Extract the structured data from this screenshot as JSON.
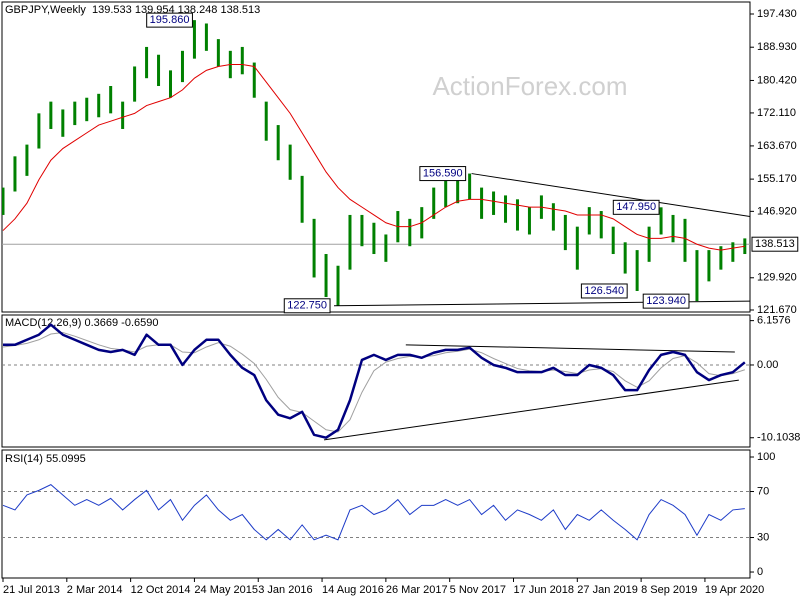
{
  "chart_data": [
    {
      "type": "range",
      "title": "GBPJPY,Weekly  139.533 139.954 138.248 138.513",
      "watermark": "ActionForex.com",
      "x": [
        0,
        6,
        12,
        18,
        24,
        30,
        36,
        42,
        48,
        54,
        60,
        66,
        72,
        78,
        84,
        90,
        96,
        102,
        108,
        114,
        120,
        126,
        132,
        138,
        144,
        150,
        156,
        162,
        168,
        174,
        180,
        186,
        192,
        198,
        204,
        210,
        216,
        222,
        228,
        234,
        240,
        246,
        252,
        258,
        264,
        270,
        276,
        282,
        288,
        294,
        300,
        306,
        312,
        318,
        324,
        330,
        336,
        342,
        348,
        354,
        360,
        366,
        372
      ],
      "xlim": [
        -0.5,
        374.6
      ],
      "xticks": [
        {
          "value": 0,
          "label": "21 Jul 2013"
        },
        {
          "value": 32,
          "label": "2 Mar 2014"
        },
        {
          "value": 64,
          "label": "12 Oct 2014"
        },
        {
          "value": 96,
          "label": "24 May 2015"
        },
        {
          "value": 128,
          "label": "3 Jan 2016"
        },
        {
          "value": 160,
          "label": "14 Aug 2016"
        },
        {
          "value": 192,
          "label": "26 Mar 2017"
        },
        {
          "value": 224,
          "label": "5 Nov 2017"
        },
        {
          "value": 256,
          "label": "17 Jun 2018"
        },
        {
          "value": 288,
          "label": "27 Jan 2019"
        },
        {
          "value": 320,
          "label": "8 Sep 2019"
        },
        {
          "value": 352,
          "label": "19 Apr 2020"
        }
      ],
      "high": [
        153,
        161,
        164,
        172,
        175,
        173,
        175,
        176,
        177,
        179,
        175,
        184,
        189,
        187,
        183,
        188,
        195.86,
        195,
        191,
        188,
        189,
        185,
        175,
        169,
        164,
        156,
        145,
        136,
        133,
        146,
        146,
        144,
        141,
        147,
        145,
        148,
        153,
        155,
        155,
        156.59,
        153,
        152,
        151,
        150,
        148,
        151,
        149,
        146,
        143,
        148,
        147,
        143,
        139,
        137,
        143,
        147.95,
        146,
        145,
        137,
        137,
        138,
        139,
        140
      ],
      "low": [
        146,
        152,
        156,
        163,
        168,
        166,
        169,
        170,
        171,
        172,
        168,
        175,
        181,
        179,
        176,
        180,
        186,
        188,
        184,
        181,
        182,
        176,
        165,
        160,
        155,
        144,
        130,
        125,
        122.75,
        132,
        138,
        136,
        134,
        139,
        138,
        140,
        145,
        148,
        149,
        150,
        145,
        146,
        144,
        142,
        141,
        145,
        142,
        137,
        132,
        141,
        140,
        136,
        131,
        126.54,
        134,
        141,
        139,
        134,
        123.94,
        129,
        132,
        134,
        136
      ],
      "color": "#008000",
      "ma": {
        "color": "#e00000",
        "values": [
          142,
          145,
          149,
          155,
          160,
          163,
          165,
          167,
          169,
          170,
          171,
          172,
          174,
          175,
          176,
          178,
          181,
          183,
          184,
          184.5,
          184.5,
          184,
          180,
          176,
          172,
          167,
          162,
          157,
          153,
          150,
          148,
          146,
          144,
          143,
          143,
          144,
          146,
          148,
          149.5,
          150,
          150,
          149.5,
          149,
          148.5,
          148,
          148,
          147.5,
          147,
          146,
          146,
          146,
          145,
          143,
          141,
          140,
          140,
          140.5,
          140,
          138.5,
          137.5,
          137,
          137.5,
          138
        ]
      },
      "ylim": [
        121.16,
        200.5
      ],
      "yticks": [
        {
          "value": 197.43,
          "label": "197.430"
        },
        {
          "value": 188.93,
          "label": "188.930"
        },
        {
          "value": 180.42,
          "label": "180.420"
        },
        {
          "value": 172.11,
          "label": "172.110"
        },
        {
          "value": 163.67,
          "label": "163.670"
        },
        {
          "value": 155.17,
          "label": "155.170"
        },
        {
          "value": 146.92,
          "label": "146.920"
        },
        {
          "value": 129.92,
          "label": "129.920"
        },
        {
          "value": 121.67,
          "label": "121.670"
        }
      ],
      "last_price": {
        "value": 138.513,
        "label": "138.513"
      },
      "annotations": [
        {
          "x": 95,
          "value": 195.86,
          "label": "195.860"
        },
        {
          "x": 232,
          "value": 156.59,
          "label": "156.590"
        },
        {
          "x": 329,
          "value": 147.95,
          "label": "147.950"
        },
        {
          "x": 313,
          "value": 126.54,
          "label": "126.540"
        },
        {
          "x": 344,
          "value": 123.94,
          "label": "123.940"
        },
        {
          "x": 164,
          "value": 122.75,
          "label": "122.750"
        }
      ],
      "trendlines": [
        {
          "x": [
            235,
            374.6
          ],
          "y": [
            156.59,
            145.6
          ]
        },
        {
          "x": [
            166,
            374.6
          ],
          "y": [
            122.75,
            123.94
          ]
        }
      ]
    },
    {
      "type": "macd",
      "title": "MACD(12,26,9) 0.3669 -0.6590",
      "macd": {
        "color": "#000080",
        "values": [
          2.8,
          2.8,
          3.5,
          4.2,
          5.6,
          4.2,
          3.5,
          2.8,
          2.1,
          1.8,
          2.1,
          1.4,
          4.2,
          2.8,
          2.8,
          0,
          2.1,
          3.5,
          3.5,
          1.4,
          -0.4,
          -1.4,
          -4.9,
          -6.9,
          -7.4,
          -6.5,
          -9.7,
          -10.1,
          -9.0,
          -4.9,
          0.7,
          1.4,
          0.7,
          1.4,
          1.4,
          1.0,
          1.7,
          2.1,
          2.1,
          2.4,
          1.0,
          0,
          -0.4,
          -1.0,
          -1.0,
          -1.0,
          -0.4,
          -1.4,
          -1.4,
          0,
          -0.4,
          -1.4,
          -3.5,
          -3.5,
          -0.7,
          1.4,
          1.8,
          1.4,
          -1.0,
          -2.1,
          -1.4,
          -1.0,
          0.3669
        ]
      },
      "signal": {
        "color": "#a0a0a0",
        "values": [
          2.5,
          2.7,
          3.0,
          3.5,
          4.3,
          4.5,
          4.0,
          3.4,
          2.8,
          2.3,
          2.1,
          1.8,
          2.6,
          2.8,
          2.8,
          1.8,
          1.7,
          2.5,
          3.1,
          2.6,
          1.5,
          0.2,
          -2.0,
          -4.5,
          -6.2,
          -6.6,
          -7.8,
          -9.0,
          -9.3,
          -7.6,
          -3.8,
          -0.8,
          0.4,
          0.9,
          1.2,
          1.1,
          1.3,
          1.7,
          1.9,
          2.2,
          1.7,
          0.9,
          0.2,
          -0.5,
          -0.8,
          -0.9,
          -0.7,
          -0.9,
          -1.2,
          -0.7,
          -0.5,
          -0.9,
          -2.2,
          -3.1,
          -2.2,
          -0.4,
          0.9,
          1.3,
          0.3,
          -1.2,
          -1.5,
          -1.2,
          -0.659
        ]
      },
      "ylim": [
        -11.39,
        6.94
      ],
      "yticks": [
        6.1576,
        {
          "value": 0,
          "label": "0.00"
        },
        -10.1038
      ],
      "ref_lines": [
        0
      ],
      "trendlines": [
        {
          "x": [
            202,
            367
          ],
          "y": [
            2.8,
            1.8
          ]
        },
        {
          "x": [
            161,
            369
          ],
          "y": [
            -10.4,
            -2.1
          ]
        }
      ]
    },
    {
      "type": "rsi",
      "title": "RSI(14) 55.0995",
      "color": "#1e3cc8",
      "values": [
        58,
        54,
        67,
        71,
        76,
        67,
        58,
        63,
        58,
        64,
        54,
        63,
        71,
        54,
        63,
        45,
        58,
        67,
        54,
        45,
        50,
        37,
        28,
        37,
        28,
        41,
        28,
        32,
        28,
        54,
        58,
        50,
        54,
        63,
        50,
        58,
        58,
        63,
        58,
        63,
        50,
        58,
        45,
        54,
        50,
        45,
        54,
        37,
        50,
        45,
        54,
        45,
        37,
        28,
        50,
        63,
        58,
        50,
        32,
        50,
        45,
        54,
        55.0995
      ],
      "ylim": [
        -5.2,
        106.1
      ],
      "yticks": [
        100,
        70,
        30,
        0
      ],
      "ref_lines": [
        70,
        30
      ]
    }
  ]
}
